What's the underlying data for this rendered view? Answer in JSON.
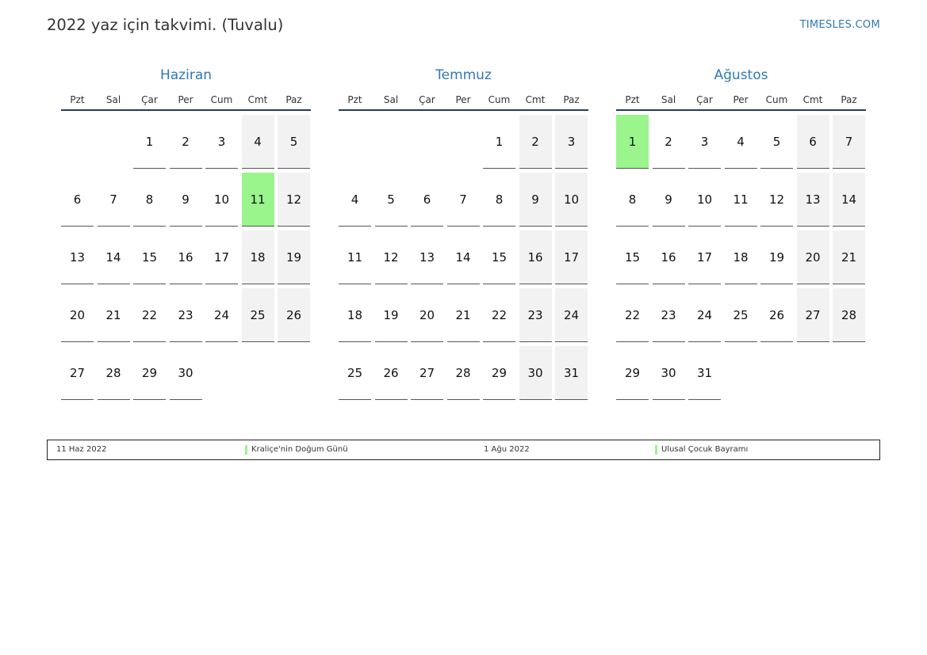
{
  "title": "2022 yaz için takvimi. (Tuvalu)",
  "brand": "TIMESLES.COM",
  "weekdays": [
    "Pzt",
    "Sal",
    "Çar",
    "Per",
    "Cum",
    "Cmt",
    "Paz"
  ],
  "months": [
    {
      "name": "Haziran",
      "days": [
        "",
        "",
        "1",
        "2",
        "3",
        "4",
        "5",
        "6",
        "7",
        "8",
        "9",
        "10",
        "11",
        "12",
        "13",
        "14",
        "15",
        "16",
        "17",
        "18",
        "19",
        "20",
        "21",
        "22",
        "23",
        "24",
        "25",
        "26",
        "27",
        "28",
        "29",
        "30",
        "",
        "",
        ""
      ],
      "holidays": [
        "11"
      ]
    },
    {
      "name": "Temmuz",
      "days": [
        "",
        "",
        "",
        "",
        "1",
        "2",
        "3",
        "4",
        "5",
        "6",
        "7",
        "8",
        "9",
        "10",
        "11",
        "12",
        "13",
        "14",
        "15",
        "16",
        "17",
        "18",
        "19",
        "20",
        "21",
        "22",
        "23",
        "24",
        "25",
        "26",
        "27",
        "28",
        "29",
        "30",
        "31"
      ],
      "holidays": []
    },
    {
      "name": "Ağustos",
      "days": [
        "1",
        "2",
        "3",
        "4",
        "5",
        "6",
        "7",
        "8",
        "9",
        "10",
        "11",
        "12",
        "13",
        "14",
        "15",
        "16",
        "17",
        "18",
        "19",
        "20",
        "21",
        "22",
        "23",
        "24",
        "25",
        "26",
        "27",
        "28",
        "29",
        "30",
        "31",
        "",
        "",
        "",
        ""
      ],
      "holidays": [
        "1"
      ]
    }
  ],
  "legend": [
    {
      "date": "11 Haz 2022",
      "name": "Kraliçe'nin Doğum Günü"
    },
    {
      "date": "1 Ağu 2022",
      "name": "Ulusal Çocuk Bayramı"
    }
  ],
  "colors": {
    "accent": "#2f78b7",
    "holiday": "#99f58c",
    "weekend": "#f2f2f2",
    "header_rule": "#243b5e"
  }
}
